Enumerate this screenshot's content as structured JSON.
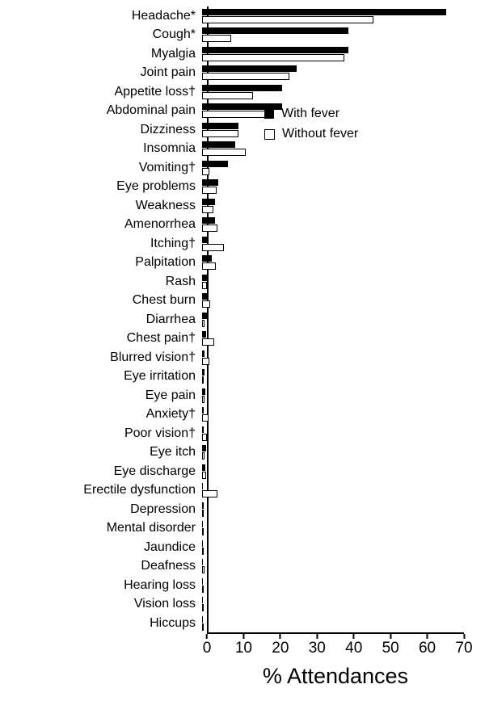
{
  "figure": {
    "background": "#ffffff",
    "bar_fill_color": "#000000",
    "bar_outline_fill": "#ffffff",
    "bar_outline_border": "#000000"
  },
  "chart_data": {
    "type": "bar",
    "orientation": "horizontal",
    "title": "",
    "xlabel": "% Attendances",
    "ylabel": "",
    "xlim": [
      0,
      70
    ],
    "xticks": [
      0,
      10,
      20,
      30,
      40,
      50,
      60,
      70
    ],
    "grid": false,
    "legend_position": "inside-upper-right",
    "categories": [
      "Headache*",
      "Cough*",
      "Myalgia",
      "Joint pain",
      "Appetite loss†",
      "Abdominal pain",
      "Dizziness",
      "Insomnia",
      "Vomiting†",
      "Eye problems",
      "Weakness",
      "Amenorrhea",
      "Itching†",
      "Palpitation",
      "Rash",
      "Chest burn",
      "Diarrhea",
      "Chest pain†",
      "Blurred vision†",
      "Eye irritation",
      "Eye pain",
      "Anxiety†",
      "Poor vision†",
      "Eye itch",
      "Eye discharge",
      "Erectile dysfunction",
      "Depression",
      "Mental disorder",
      "Jaundice",
      "Deafness",
      "Hearing loss",
      "Vision loss",
      "Hiccups"
    ],
    "series": [
      {
        "name": "With fever",
        "style": "filled",
        "color": "#000000",
        "values": [
          67,
          40,
          40,
          26,
          22,
          22,
          10,
          9,
          7,
          4.5,
          3.5,
          3.5,
          1.7,
          2.7,
          1.6,
          1.8,
          1.6,
          1.0,
          0.7,
          0.7,
          0.8,
          0.5,
          0.5,
          1.0,
          0.8,
          0.3,
          0.4,
          0.3,
          0.3,
          0.3,
          0.3,
          0.2,
          0.2
        ]
      },
      {
        "name": "Without fever",
        "style": "outlined",
        "color": "#ffffff",
        "border": "#000000",
        "values": [
          47,
          8,
          39,
          24,
          14,
          19,
          10,
          12,
          2,
          4,
          3,
          4.3,
          6,
          3.8,
          1.4,
          2.3,
          0.7,
          3.4,
          1.9,
          0.5,
          0.6,
          1.8,
          1.4,
          0.7,
          1.0,
          4.2,
          0.5,
          0.3,
          0.4,
          0.6,
          0.5,
          0.2,
          0.1
        ]
      }
    ]
  }
}
